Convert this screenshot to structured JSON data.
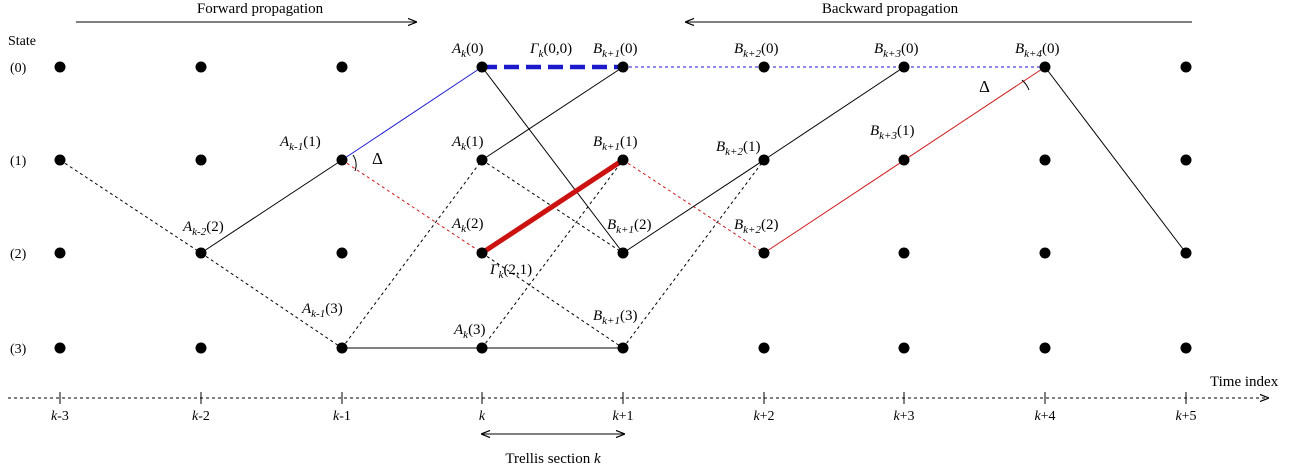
{
  "headers": {
    "state": "State",
    "forward": "Forward propagation",
    "backward": "Backward propagation",
    "time_index": "Time index",
    "trellis": "Trellis section k"
  },
  "state_labels": [
    "(0)",
    "(1)",
    "(2)",
    "(3)"
  ],
  "time_labels": [
    {
      "main": "k",
      "rest": "-3"
    },
    {
      "main": "k",
      "rest": "-2"
    },
    {
      "main": "k",
      "rest": "-1"
    },
    {
      "main": "k",
      "rest": ""
    },
    {
      "main": "k",
      "rest": "+1"
    },
    {
      "main": "k",
      "rest": "+2"
    },
    {
      "main": "k",
      "rest": "+3"
    },
    {
      "main": "k",
      "rest": "+4"
    },
    {
      "main": "k",
      "rest": "+5"
    }
  ],
  "delta_symbol": "Δ",
  "node_labels": [
    {
      "name": "A",
      "sub": "k",
      "arg": "(0)",
      "t": 3,
      "s": 0
    },
    {
      "name": "B",
      "sub": "k+1",
      "arg": "(0)",
      "t": 4,
      "s": 0
    },
    {
      "name": "B",
      "sub": "k+2",
      "arg": "(0)",
      "t": 5,
      "s": 0
    },
    {
      "name": "B",
      "sub": "k+3",
      "arg": "(0)",
      "t": 6,
      "s": 0
    },
    {
      "name": "B",
      "sub": "k+4",
      "arg": "(0)",
      "t": 7,
      "s": 0
    },
    {
      "name": "A",
      "sub": "k-1",
      "arg": "(1)",
      "t": 2,
      "s": 1
    },
    {
      "name": "A",
      "sub": "k",
      "arg": "(1)",
      "t": 3,
      "s": 1
    },
    {
      "name": "B",
      "sub": "k+1",
      "arg": "(1)",
      "t": 4,
      "s": 1
    },
    {
      "name": "B",
      "sub": "k+2",
      "arg": "(1)",
      "t": 5,
      "s": 1
    },
    {
      "name": "B",
      "sub": "k+3",
      "arg": "(1)",
      "t": 6,
      "s": 1
    },
    {
      "name": "A",
      "sub": "k-2",
      "arg": "(2)",
      "t": 1,
      "s": 2
    },
    {
      "name": "A",
      "sub": "k",
      "arg": "(2)",
      "t": 3,
      "s": 2
    },
    {
      "name": "B",
      "sub": "k+1",
      "arg": "(2)",
      "t": 4,
      "s": 2
    },
    {
      "name": "B",
      "sub": "k+2",
      "arg": "(2)",
      "t": 5,
      "s": 2
    },
    {
      "name": "A",
      "sub": "k-1",
      "arg": "(3)",
      "t": 2,
      "s": 3
    },
    {
      "name": "A",
      "sub": "k",
      "arg": "(3)",
      "t": 3,
      "s": 3
    },
    {
      "name": "B",
      "sub": "k+1",
      "arg": "(3)",
      "t": 4,
      "s": 3
    }
  ],
  "gamma_labels": [
    {
      "name": "Γ",
      "sub": "k",
      "arg": "(0,0)",
      "from": [
        3,
        0
      ],
      "to": [
        4,
        0
      ]
    },
    {
      "name": "Γ",
      "sub": "k",
      "arg": "(2,1)",
      "from": [
        3,
        2
      ],
      "to": [
        4,
        1
      ]
    }
  ],
  "branches": [
    {
      "from": [
        0,
        1
      ],
      "to": [
        1,
        2
      ],
      "style": "dashed",
      "color": "#000000"
    },
    {
      "from": [
        1,
        2
      ],
      "to": [
        2,
        1
      ],
      "style": "solid",
      "color": "#000000"
    },
    {
      "from": [
        1,
        2
      ],
      "to": [
        2,
        3
      ],
      "style": "dashed",
      "color": "#000000"
    },
    {
      "from": [
        2,
        1
      ],
      "to": [
        3,
        0
      ],
      "style": "solid",
      "color": "#1a1ad0"
    },
    {
      "from": [
        2,
        1
      ],
      "to": [
        3,
        2
      ],
      "style": "dashed",
      "color": "#d01a1a"
    },
    {
      "from": [
        2,
        3
      ],
      "to": [
        3,
        1
      ],
      "style": "dashed",
      "color": "#000000"
    },
    {
      "from": [
        2,
        3
      ],
      "to": [
        3,
        3
      ],
      "style": "solid",
      "color": "#000000"
    },
    {
      "from": [
        3,
        0
      ],
      "to": [
        4,
        0
      ],
      "style": "thick-dashed",
      "color": "#1a1acc"
    },
    {
      "from": [
        3,
        0
      ],
      "to": [
        4,
        2
      ],
      "style": "solid",
      "color": "#000000"
    },
    {
      "from": [
        3,
        1
      ],
      "to": [
        4,
        0
      ],
      "style": "solid",
      "color": "#000000"
    },
    {
      "from": [
        3,
        1
      ],
      "to": [
        4,
        2
      ],
      "style": "dashed",
      "color": "#000000"
    },
    {
      "from": [
        3,
        2
      ],
      "to": [
        4,
        1
      ],
      "style": "thick",
      "color": "#cc1111"
    },
    {
      "from": [
        3,
        2
      ],
      "to": [
        4,
        3
      ],
      "style": "dashed",
      "color": "#000000"
    },
    {
      "from": [
        3,
        3
      ],
      "to": [
        4,
        1
      ],
      "style": "dashed",
      "color": "#000000"
    },
    {
      "from": [
        3,
        3
      ],
      "to": [
        4,
        3
      ],
      "style": "solid",
      "color": "#000000"
    },
    {
      "from": [
        4,
        0
      ],
      "to": [
        7,
        0
      ],
      "style": "dashed",
      "color": "#1a1ad0"
    },
    {
      "from": [
        4,
        1
      ],
      "to": [
        5,
        2
      ],
      "style": "dashed",
      "color": "#d01a1a"
    },
    {
      "from": [
        4,
        2
      ],
      "to": [
        5,
        1
      ],
      "style": "solid",
      "color": "#000000"
    },
    {
      "from": [
        4,
        3
      ],
      "to": [
        5,
        1
      ],
      "style": "dashed",
      "color": "#000000"
    },
    {
      "from": [
        5,
        1
      ],
      "to": [
        6,
        0
      ],
      "style": "solid",
      "color": "#000000"
    },
    {
      "from": [
        5,
        2
      ],
      "to": [
        7,
        0
      ],
      "style": "solid",
      "color": "#d01a1a"
    },
    {
      "from": [
        7,
        0
      ],
      "to": [
        8,
        2
      ],
      "style": "solid",
      "color": "#000000"
    }
  ]
}
